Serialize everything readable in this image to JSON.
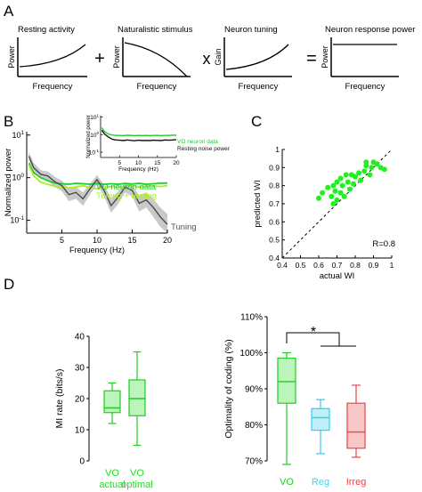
{
  "panel_letters": {
    "A": "A",
    "B": "B",
    "C": "C",
    "D": "D"
  },
  "operators": {
    "plus": "+",
    "times": "x",
    "equals": "="
  },
  "panel_a": {
    "boxes": [
      {
        "title": "Resting activity",
        "ylabel": "Power",
        "xlabel": "Frequency"
      },
      {
        "title": "Naturalistic stimulus",
        "ylabel": "Power",
        "xlabel": "Frequency"
      },
      {
        "title": "Neuron tuning",
        "ylabel": "Gain",
        "xlabel": "Frequency"
      },
      {
        "title": "Neuron response power",
        "ylabel": "Power",
        "xlabel": "Frequency"
      }
    ]
  },
  "chart_data": [
    {
      "id": "B-main",
      "type": "line",
      "xlabel": "Frequency (Hz)",
      "ylabel": "Normalized power",
      "xlim": [
        0,
        20
      ],
      "ylim": [
        0.05,
        12
      ],
      "yscale": "log",
      "x_ticks": [
        "5",
        "10",
        "15",
        "20"
      ],
      "y_ticks": [
        "10^1",
        "10^0",
        "10^-1"
      ],
      "series": [
        {
          "name": "VO neuron data",
          "color": "#22cc33",
          "x": [
            0.3,
            1,
            2,
            3,
            4,
            5,
            6,
            7,
            8,
            9,
            10,
            11,
            12,
            13,
            14,
            15,
            16,
            17,
            18,
            19,
            20
          ],
          "y": [
            2.2,
            1.3,
            1.0,
            0.85,
            0.75,
            0.72,
            0.7,
            0.74,
            0.72,
            0.7,
            0.73,
            0.7,
            0.72,
            0.7,
            0.73,
            0.71,
            0.74,
            0.7,
            0.72,
            0.74,
            0.75
          ]
        },
        {
          "name": "Tuning + resting",
          "color": "#aaee22",
          "x": [
            0.3,
            1,
            2,
            3,
            4,
            5,
            6,
            7,
            8,
            9,
            10,
            11,
            12,
            13,
            14,
            15,
            16,
            17,
            18,
            19,
            20
          ],
          "y": [
            2.0,
            1.1,
            0.78,
            0.7,
            0.62,
            0.6,
            0.58,
            0.6,
            0.65,
            0.58,
            0.55,
            0.6,
            0.62,
            0.6,
            0.62,
            0.65,
            0.6,
            0.62,
            0.64,
            0.62,
            0.65
          ]
        },
        {
          "name": "Tuning",
          "color": "#444444",
          "band_color": "#bbbbbb",
          "x": [
            0.3,
            1,
            2,
            3,
            4,
            5,
            6,
            7,
            8,
            9,
            10,
            11,
            12,
            13,
            14,
            15,
            16,
            17,
            18,
            19,
            20
          ],
          "y": [
            3.2,
            1.7,
            1.2,
            1.1,
            0.8,
            0.65,
            0.4,
            0.45,
            0.32,
            0.55,
            0.9,
            0.5,
            0.22,
            0.35,
            0.6,
            0.5,
            0.25,
            0.3,
            0.2,
            0.12,
            0.08
          ],
          "band_low": [
            2.5,
            1.3,
            0.95,
            0.85,
            0.6,
            0.48,
            0.28,
            0.32,
            0.22,
            0.4,
            0.7,
            0.36,
            0.15,
            0.24,
            0.45,
            0.36,
            0.16,
            0.2,
            0.12,
            0.07,
            0.05
          ],
          "band_high": [
            4.0,
            2.2,
            1.5,
            1.4,
            1.05,
            0.85,
            0.55,
            0.6,
            0.45,
            0.72,
            1.15,
            0.68,
            0.32,
            0.48,
            0.78,
            0.68,
            0.38,
            0.45,
            0.32,
            0.2,
            0.14
          ]
        }
      ]
    },
    {
      "id": "B-inset",
      "type": "line",
      "xlabel": "Frequency (Hz)",
      "ylabel": "Normalized power",
      "xlim": [
        0,
        20
      ],
      "ylim": [
        0.05,
        12
      ],
      "yscale": "log",
      "x_ticks": [
        "5",
        "10",
        "15",
        "20"
      ],
      "y_ticks": [
        "10^1",
        "10^0",
        "10^-1"
      ],
      "series": [
        {
          "name": "VO neuron data",
          "color": "#22cc33",
          "x": [
            0.3,
            1,
            2,
            3,
            4,
            5,
            6,
            7,
            8,
            9,
            10,
            11,
            12,
            13,
            14,
            15,
            16,
            17,
            18,
            19,
            20
          ],
          "y": [
            2.5,
            1.5,
            1.1,
            0.95,
            0.9,
            0.9,
            0.88,
            0.92,
            0.9,
            0.88,
            0.9,
            0.88,
            0.9,
            0.88,
            0.9,
            0.9,
            0.88,
            0.9,
            0.9,
            0.92,
            0.92
          ]
        },
        {
          "name": "Resting noise power",
          "color": "#111111",
          "x": [
            0.3,
            1,
            2,
            3,
            4,
            5,
            6,
            7,
            8,
            9,
            10,
            11,
            12,
            13,
            14,
            15,
            16,
            17,
            18,
            19,
            20
          ],
          "y": [
            1.8,
            1.1,
            0.75,
            0.55,
            0.5,
            0.48,
            0.46,
            0.5,
            0.47,
            0.45,
            0.48,
            0.46,
            0.47,
            0.46,
            0.48,
            0.47,
            0.46,
            0.5,
            0.48,
            0.5,
            0.52
          ]
        }
      ]
    },
    {
      "id": "C",
      "type": "scatter",
      "xlabel": "actual WI",
      "ylabel": "predicted WI",
      "xlim": [
        0.4,
        1.0
      ],
      "ylim": [
        0.4,
        1.0
      ],
      "x_ticks": [
        "0.4",
        "0.5",
        "0.6",
        "0.7",
        "0.8",
        "0.9",
        "1"
      ],
      "y_ticks": [
        "0.4",
        "0.5",
        "0.6",
        "0.7",
        "0.8",
        "0.9",
        "1"
      ],
      "annotation": "R=0.8",
      "color": "#22ee22",
      "points": [
        [
          0.6,
          0.73
        ],
        [
          0.62,
          0.76
        ],
        [
          0.65,
          0.79
        ],
        [
          0.67,
          0.74
        ],
        [
          0.68,
          0.8
        ],
        [
          0.69,
          0.77
        ],
        [
          0.7,
          0.82
        ],
        [
          0.7,
          0.72
        ],
        [
          0.72,
          0.76
        ],
        [
          0.72,
          0.84
        ],
        [
          0.73,
          0.8
        ],
        [
          0.74,
          0.74
        ],
        [
          0.75,
          0.86
        ],
        [
          0.76,
          0.82
        ],
        [
          0.77,
          0.78
        ],
        [
          0.78,
          0.86
        ],
        [
          0.79,
          0.81
        ],
        [
          0.8,
          0.85
        ],
        [
          0.82,
          0.87
        ],
        [
          0.83,
          0.83
        ],
        [
          0.85,
          0.88
        ],
        [
          0.86,
          0.91
        ],
        [
          0.86,
          0.93
        ],
        [
          0.88,
          0.86
        ],
        [
          0.89,
          0.9
        ],
        [
          0.9,
          0.93
        ],
        [
          0.92,
          0.92
        ],
        [
          0.94,
          0.9
        ],
        [
          0.96,
          0.89
        ],
        [
          0.68,
          0.7
        ]
      ]
    },
    {
      "id": "D-left",
      "type": "box",
      "ylabel": "MI rate (bits/s)",
      "ylim": [
        0,
        40
      ],
      "y_ticks": [
        "0",
        "10",
        "20",
        "30",
        "40"
      ],
      "categories": [
        [
          "VO",
          "actual"
        ],
        [
          "VO",
          "optimal"
        ]
      ],
      "category_color": "#22dd22",
      "boxes": [
        {
          "whisker_low": 12,
          "q1": 15.5,
          "median": 17,
          "q3": 22.5,
          "whisker_high": 25,
          "fill": "#bbf5bb",
          "stroke": "#22cc22"
        },
        {
          "whisker_low": 5,
          "q1": 14.5,
          "median": 20,
          "q3": 26,
          "whisker_high": 35,
          "fill": "#bbf5bb",
          "stroke": "#22cc22"
        }
      ]
    },
    {
      "id": "D-right",
      "type": "box",
      "ylabel": "Optimality of coding (%)",
      "ylim": [
        70,
        110
      ],
      "y_ticks": [
        "70%",
        "80%",
        "90%",
        "100%",
        "110%"
      ],
      "categories": [
        "VO",
        "Reg",
        "Irreg"
      ],
      "category_colors": [
        "#22cc22",
        "#33ddee",
        "#ee4444"
      ],
      "significance": "*",
      "boxes": [
        {
          "whisker_low": 69,
          "q1": 86,
          "median": 92,
          "q3": 98.5,
          "whisker_high": 100,
          "fill": "#bbf5bb",
          "stroke": "#22cc22"
        },
        {
          "whisker_low": 72,
          "q1": 78.5,
          "median": 82,
          "q3": 84.5,
          "whisker_high": 87,
          "fill": "#bfeff8",
          "stroke": "#33ccee"
        },
        {
          "whisker_low": 71,
          "q1": 73.5,
          "median": 78,
          "q3": 86,
          "whisker_high": 91,
          "fill": "#f8c8c8",
          "stroke": "#ee4444"
        }
      ]
    }
  ]
}
